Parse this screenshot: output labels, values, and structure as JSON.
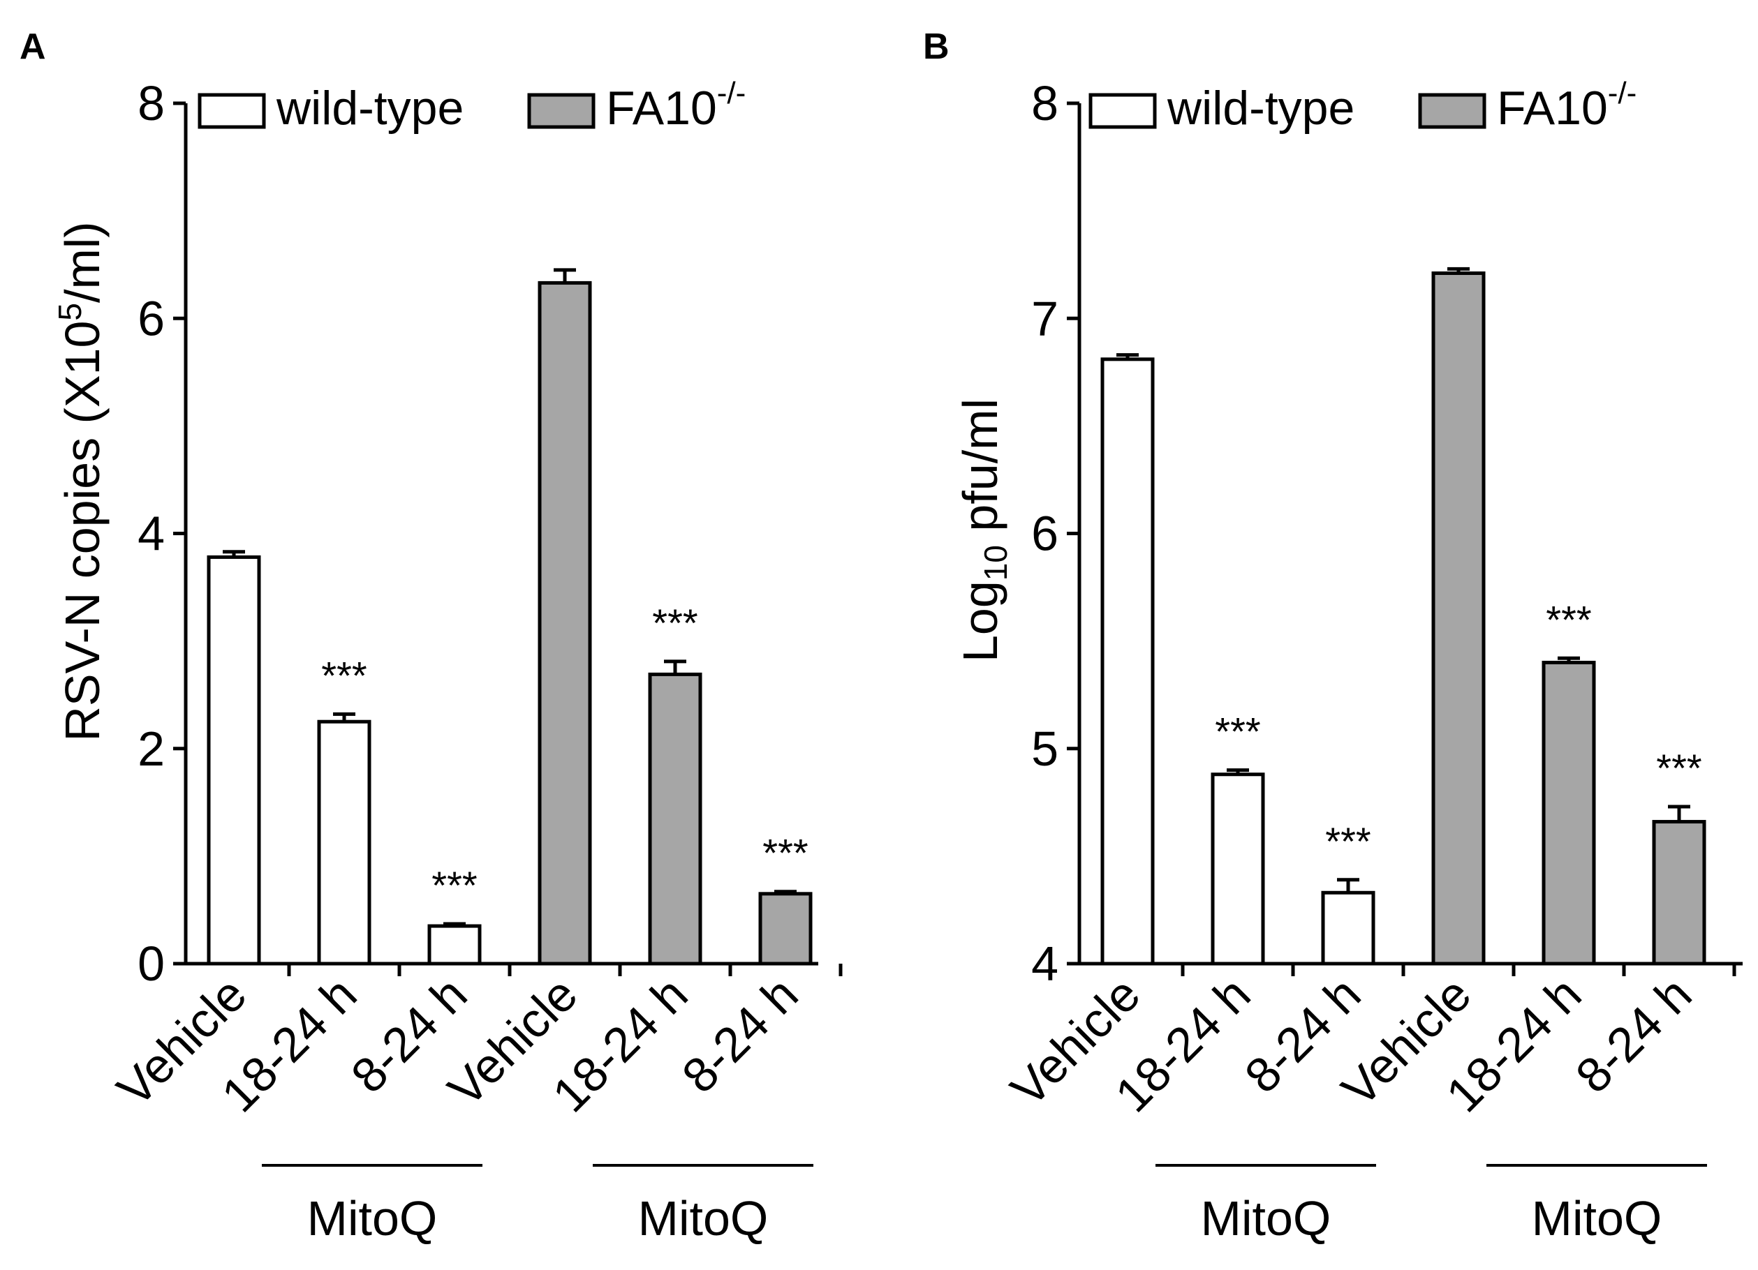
{
  "colors": {
    "wildtype_fill": "#ffffff",
    "fa10_fill": "#a6a6a6",
    "stroke": "#000000",
    "background": "#ffffff"
  },
  "chart_data": [
    {
      "panel": "A",
      "type": "bar",
      "ylabel": "RSV-N copies (X10",
      "ylabel_sup": "5",
      "ylabel_tail": "/ml)",
      "ylim": [
        0,
        8
      ],
      "yticks": [
        "0",
        "2",
        "4",
        "6",
        "8"
      ],
      "categories": [
        "Vehicle",
        "18-24 h",
        "8-24 h",
        "Vehicle",
        "18-24 h",
        "8-24 h"
      ],
      "groups": [
        "wild-type",
        "wild-type",
        "wild-type",
        "FA10-/-",
        "FA10-/-",
        "FA10-/-"
      ],
      "values": [
        3.78,
        2.25,
        0.35,
        6.33,
        2.69,
        0.65
      ],
      "errors": [
        0.05,
        0.07,
        0.02,
        0.12,
        0.12,
        0.02
      ],
      "significance": [
        "",
        "***",
        "***",
        "",
        "***",
        "***"
      ],
      "group_labels": [
        "MitoQ",
        "MitoQ"
      ],
      "legend": {
        "placement": "top",
        "entries": [
          {
            "label": "wild-type",
            "sup": ""
          },
          {
            "label": "FA10",
            "sup": "-/-"
          }
        ]
      }
    },
    {
      "panel": "B",
      "type": "bar",
      "ylabel": "Log",
      "ylabel_sub": "10",
      "ylabel_tail": " pfu/ml",
      "ylim": [
        4,
        8
      ],
      "yticks": [
        "4",
        "5",
        "6",
        "7",
        "8"
      ],
      "categories": [
        "Vehicle",
        "18-24 h",
        "8-24 h",
        "Vehicle",
        "18-24 h",
        "8-24 h"
      ],
      "groups": [
        "wild-type",
        "wild-type",
        "wild-type",
        "FA10-/-",
        "FA10-/-",
        "FA10-/-"
      ],
      "values": [
        6.81,
        4.88,
        4.33,
        7.21,
        5.4,
        4.66
      ],
      "errors": [
        0.02,
        0.02,
        0.06,
        0.02,
        0.02,
        0.07
      ],
      "significance": [
        "",
        "***",
        "***",
        "",
        "***",
        "***"
      ],
      "group_labels": [
        "MitoQ",
        "MitoQ"
      ],
      "legend": {
        "placement": "top",
        "entries": [
          {
            "label": "wild-type",
            "sup": ""
          },
          {
            "label": "FA10",
            "sup": "-/-"
          }
        ]
      }
    }
  ]
}
